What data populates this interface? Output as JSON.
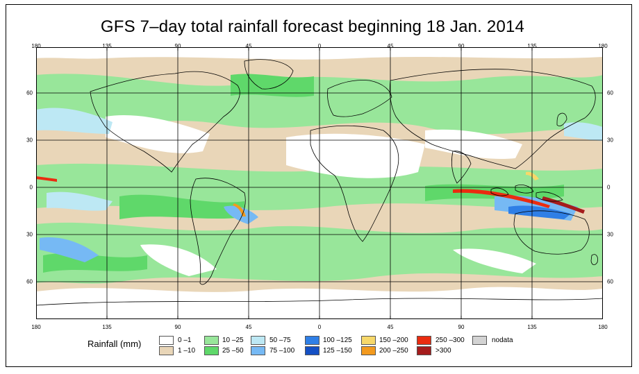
{
  "title": "GFS 7–day total rainfall forecast beginning 18 Jan. 2014",
  "lon_labels": [
    "180",
    "135",
    "90",
    "45",
    "0",
    "45",
    "90",
    "135",
    "180"
  ],
  "lat_labels": [
    "60",
    "30",
    "0",
    "30",
    "60"
  ],
  "legend": {
    "title": "Rainfall (mm)",
    "items": [
      {
        "label": "0 –1",
        "color": "#ffffff"
      },
      {
        "label": "1 –10",
        "color": "#e9d6b8"
      },
      {
        "label": "10 –25",
        "color": "#98e69a"
      },
      {
        "label": "25 –50",
        "color": "#5fd86a"
      },
      {
        "label": "50 –75",
        "color": "#bde8f4"
      },
      {
        "label": "75 –100",
        "color": "#76b9f4"
      },
      {
        "label": "100 –125",
        "color": "#2f7fe6"
      },
      {
        "label": "125 –150",
        "color": "#1450c4"
      },
      {
        "label": "150 –200",
        "color": "#f7d86a"
      },
      {
        "label": "200 –250",
        "color": "#f39a1e"
      },
      {
        "label": "250 –300",
        "color": "#ea2c10"
      },
      {
        "label": ">300",
        "color": "#a51c1c"
      },
      {
        "label": "nodata",
        "color": "#d3d3d3"
      }
    ]
  }
}
